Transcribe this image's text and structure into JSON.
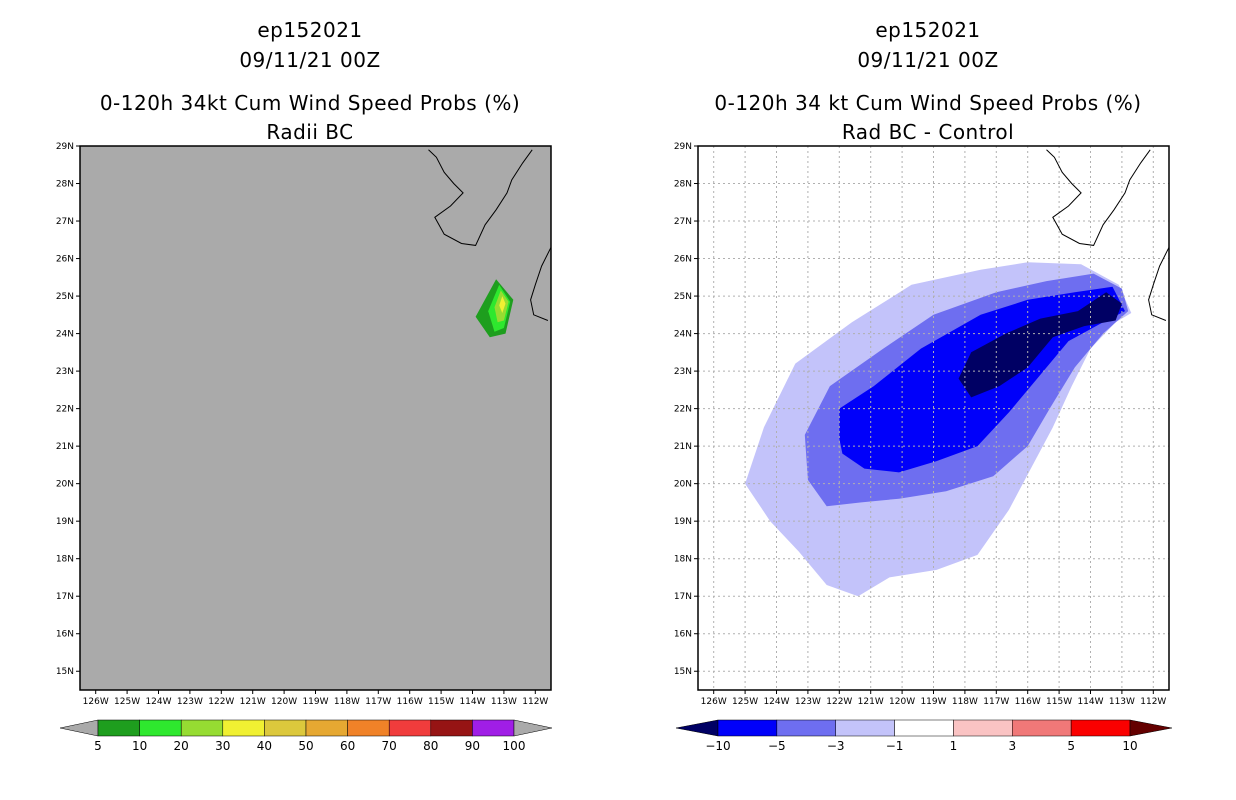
{
  "chart_data": [
    {
      "type": "heatmap",
      "storm_id": "ep152021",
      "datetime": "09/11/21 00Z",
      "title": "0-120h 34kt Cum Wind Speed Probs (%)",
      "subtitle": "Radii BC",
      "xlabel": "",
      "ylabel": "",
      "x_ticks": [
        "126W",
        "125W",
        "124W",
        "123W",
        "122W",
        "121W",
        "120W",
        "119W",
        "118W",
        "117W",
        "116W",
        "115W",
        "114W",
        "113W",
        "112W"
      ],
      "y_ticks": [
        "15N",
        "16N",
        "17N",
        "18N",
        "19N",
        "20N",
        "21N",
        "22N",
        "23N",
        "24N",
        "25N",
        "26N",
        "27N",
        "28N",
        "29N"
      ],
      "xlim": [
        -126.5,
        -111.5
      ],
      "ylim": [
        14.5,
        29
      ],
      "grid": false,
      "background_color": "#aaaaaa",
      "colorbar": {
        "labels": [
          "5",
          "10",
          "20",
          "30",
          "40",
          "50",
          "60",
          "70",
          "80",
          "90",
          "100"
        ],
        "colors": [
          "#1e9e1e",
          "#2ee82e",
          "#96dc32",
          "#f0f032",
          "#dcc83c",
          "#e6a832",
          "#f08228",
          "#f03c3c",
          "#961414",
          "#a01ee6"
        ],
        "end_color": "#aaaaaa"
      },
      "contours": [
        {
          "level": 5,
          "color": "#1e9e1e",
          "points": [
            [
              -113.9,
              24.45
            ],
            [
              -113.25,
              25.45
            ],
            [
              -112.7,
              24.9
            ],
            [
              -112.95,
              24.0
            ],
            [
              -113.45,
              23.9
            ]
          ]
        },
        {
          "level": 10,
          "color": "#2ee82e",
          "points": [
            [
              -113.5,
              24.6
            ],
            [
              -113.15,
              25.3
            ],
            [
              -112.8,
              24.85
            ],
            [
              -113.0,
              24.15
            ],
            [
              -113.3,
              24.05
            ]
          ]
        },
        {
          "level": 20,
          "color": "#96dc32",
          "points": [
            [
              -113.3,
              24.7
            ],
            [
              -113.1,
              25.15
            ],
            [
              -112.85,
              24.85
            ],
            [
              -113.0,
              24.35
            ],
            [
              -113.2,
              24.3
            ]
          ]
        },
        {
          "level": 30,
          "color": "#f0f032",
          "points": [
            [
              -113.15,
              24.75
            ],
            [
              -113.05,
              25.0
            ],
            [
              -112.95,
              24.8
            ],
            [
              -113.05,
              24.55
            ]
          ]
        }
      ]
    },
    {
      "type": "heatmap",
      "storm_id": "ep152021",
      "datetime": "09/11/21 00Z",
      "title": "0-120h 34 kt Cum Wind Speed Probs (%)",
      "subtitle": "Rad BC - Control",
      "xlabel": "",
      "ylabel": "",
      "x_ticks": [
        "126W",
        "125W",
        "124W",
        "123W",
        "122W",
        "121W",
        "120W",
        "119W",
        "118W",
        "117W",
        "116W",
        "115W",
        "114W",
        "113W",
        "112W"
      ],
      "y_ticks": [
        "15N",
        "16N",
        "17N",
        "18N",
        "19N",
        "20N",
        "21N",
        "22N",
        "23N",
        "24N",
        "25N",
        "26N",
        "27N",
        "28N",
        "29N"
      ],
      "xlim": [
        -126.5,
        -111.5
      ],
      "ylim": [
        14.5,
        29
      ],
      "grid": true,
      "background_color": "#ffffff",
      "colorbar": {
        "labels": [
          "-10",
          "-5",
          "-3",
          "-1",
          "1",
          "3",
          "5",
          "10"
        ],
        "colors": [
          "#0000fa",
          "#6e6ef0",
          "#c3c3fa",
          "#ffffff",
          "#fac3c3",
          "#f07878",
          "#fa0000"
        ],
        "low_color": "#000064",
        "high_color": "#640000"
      },
      "contours": [
        {
          "level": -1,
          "color": "#c3c3fa",
          "points": [
            [
              -125.0,
              20.0
            ],
            [
              -124.4,
              21.5
            ],
            [
              -123.4,
              23.2
            ],
            [
              -121.6,
              24.3
            ],
            [
              -119.7,
              25.3
            ],
            [
              -117.5,
              25.7
            ],
            [
              -116.0,
              25.9
            ],
            [
              -114.3,
              25.85
            ],
            [
              -113.1,
              25.3
            ],
            [
              -112.7,
              24.55
            ],
            [
              -113.2,
              24.3
            ],
            [
              -114.0,
              23.6
            ],
            [
              -114.6,
              22.6
            ],
            [
              -115.2,
              21.5
            ],
            [
              -115.9,
              20.4
            ],
            [
              -116.6,
              19.3
            ],
            [
              -117.6,
              18.1
            ],
            [
              -118.9,
              17.7
            ],
            [
              -120.4,
              17.5
            ],
            [
              -121.4,
              17.0
            ],
            [
              -122.4,
              17.3
            ],
            [
              -123.3,
              18.2
            ],
            [
              -124.2,
              19.0
            ]
          ]
        },
        {
          "level": -3,
          "color": "#6e6ef0",
          "points": [
            [
              -123.1,
              21.3
            ],
            [
              -122.3,
              22.6
            ],
            [
              -120.6,
              23.6
            ],
            [
              -119.0,
              24.5
            ],
            [
              -117.0,
              25.1
            ],
            [
              -115.4,
              25.4
            ],
            [
              -113.9,
              25.6
            ],
            [
              -113.0,
              25.2
            ],
            [
              -112.8,
              24.6
            ],
            [
              -113.6,
              24.0
            ],
            [
              -114.5,
              23.1
            ],
            [
              -115.3,
              22.0
            ],
            [
              -116.0,
              21.0
            ],
            [
              -117.1,
              20.2
            ],
            [
              -118.6,
              19.8
            ],
            [
              -120.1,
              19.6
            ],
            [
              -121.3,
              19.5
            ],
            [
              -122.4,
              19.4
            ],
            [
              -123.0,
              20.1
            ]
          ]
        },
        {
          "level": -5,
          "color": "#0000fa",
          "points": [
            [
              -122.0,
              21.2
            ],
            [
              -122.0,
              22.0
            ],
            [
              -120.9,
              22.6
            ],
            [
              -119.4,
              23.6
            ],
            [
              -117.5,
              24.5
            ],
            [
              -116.0,
              24.9
            ],
            [
              -114.5,
              25.1
            ],
            [
              -113.3,
              25.25
            ],
            [
              -112.9,
              24.6
            ],
            [
              -113.6,
              24.3
            ],
            [
              -114.7,
              23.8
            ],
            [
              -115.6,
              22.9
            ],
            [
              -116.6,
              21.9
            ],
            [
              -117.6,
              21.0
            ],
            [
              -118.9,
              20.6
            ],
            [
              -120.1,
              20.3
            ],
            [
              -121.2,
              20.4
            ],
            [
              -121.9,
              20.8
            ]
          ]
        },
        {
          "level": -10,
          "color": "#000064",
          "points": [
            [
              -118.2,
              22.8
            ],
            [
              -117.8,
              23.5
            ],
            [
              -116.7,
              24.0
            ],
            [
              -115.6,
              24.4
            ],
            [
              -114.4,
              24.6
            ],
            [
              -113.5,
              25.1
            ],
            [
              -113.0,
              24.8
            ],
            [
              -113.2,
              24.35
            ],
            [
              -114.2,
              24.2
            ],
            [
              -115.2,
              23.9
            ],
            [
              -116.0,
              23.1
            ],
            [
              -116.9,
              22.6
            ],
            [
              -117.8,
              22.3
            ]
          ]
        }
      ]
    }
  ]
}
